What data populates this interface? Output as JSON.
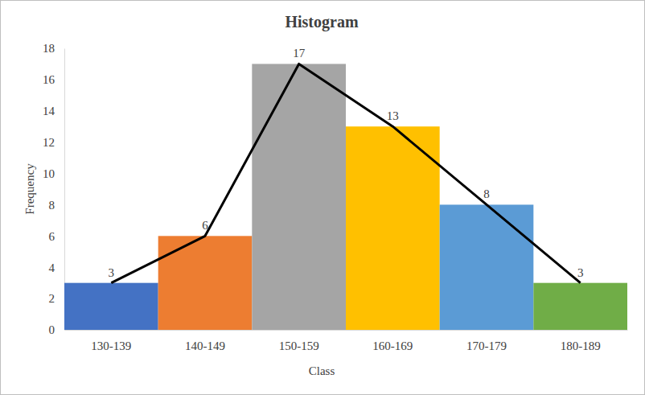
{
  "chart_data": {
    "type": "bar",
    "title": "Histogram",
    "x_label": "Class",
    "y_label": "Frequency",
    "categories": [
      "130-139",
      "140-149",
      "150-159",
      "160-169",
      "170-179",
      "180-189"
    ],
    "series": [
      {
        "type": "bar",
        "values": [
          3,
          6,
          17,
          13,
          8,
          3
        ],
        "colors": [
          "#4472c4",
          "#ed7d31",
          "#a5a5a5",
          "#ffc000",
          "#5b9bd5",
          "#70ad47"
        ],
        "data_labels": true
      },
      {
        "type": "line",
        "values": [
          3,
          6,
          17,
          13,
          8,
          3
        ],
        "color": "#000000",
        "line_style": "solid"
      }
    ],
    "ylim": [
      0,
      18
    ],
    "yticks": [
      0,
      2,
      4,
      6,
      8,
      10,
      12,
      14,
      16,
      18
    ],
    "grid": false
  }
}
